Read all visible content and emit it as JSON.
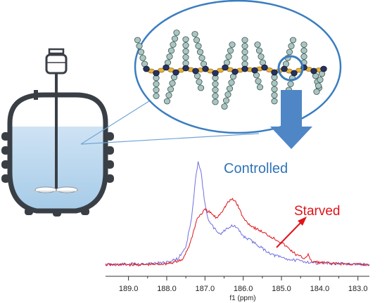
{
  "figure": {
    "colors": {
      "ellipse_stroke": "#3a7dc0",
      "arrow_fill": "#4f86c6",
      "vessel_stroke": "#3a3f46",
      "liquid_top": "#cfe3f4",
      "liquid_bottom": "#a6cbe8",
      "chain_link": "#e8b23a",
      "dark_unit": "#27325e",
      "side_bead": "#a9c6c2",
      "controlled": "#6f6fe0",
      "starved": "#e0141b",
      "controlled_label": "#2f74b8",
      "starved_label": "#e0141b"
    },
    "icons": [
      "bioreactor-vessel-icon",
      "polymer-chain-icon",
      "down-arrow-icon",
      "zoom-circle-icon"
    ]
  },
  "chart_data": {
    "type": "line",
    "xlabel": "f1 (ppm)",
    "x_ticks": [
      "189.0",
      "188.0",
      "187.0",
      "186.0",
      "185.0",
      "184.0",
      "183.0"
    ],
    "xlim": [
      189.6,
      182.7
    ],
    "x_reversed": true,
    "series": [
      {
        "name": "Controlled",
        "color": "#6f6fe0",
        "x": [
          189.6,
          188.5,
          188.0,
          187.7,
          187.5,
          187.35,
          187.25,
          187.18,
          187.1,
          187.0,
          186.9,
          186.75,
          186.6,
          186.5,
          186.4,
          186.3,
          186.2,
          186.1,
          186.0,
          185.8,
          185.6,
          185.4,
          185.2,
          185.0,
          184.8,
          184.6,
          184.4,
          184.2,
          184.0,
          183.6,
          183.2,
          182.7
        ],
        "y": [
          0.01,
          0.02,
          0.03,
          0.07,
          0.18,
          0.45,
          0.8,
          1.0,
          0.88,
          0.58,
          0.42,
          0.35,
          0.3,
          0.33,
          0.36,
          0.38,
          0.37,
          0.33,
          0.28,
          0.24,
          0.19,
          0.14,
          0.1,
          0.08,
          0.06,
          0.05,
          0.04,
          0.03,
          0.025,
          0.02,
          0.015,
          0.01
        ]
      },
      {
        "name": "Starved",
        "color": "#e0141b",
        "x": [
          189.6,
          188.5,
          188.0,
          187.6,
          187.4,
          187.2,
          187.0,
          186.85,
          186.7,
          186.55,
          186.4,
          186.3,
          186.2,
          186.1,
          186.0,
          185.8,
          185.6,
          185.4,
          185.2,
          185.0,
          184.8,
          184.6,
          184.4,
          184.3,
          184.25,
          184.2,
          184.0,
          183.6,
          183.2,
          182.7
        ],
        "y": [
          0.01,
          0.01,
          0.02,
          0.05,
          0.2,
          0.45,
          0.53,
          0.5,
          0.45,
          0.52,
          0.6,
          0.63,
          0.61,
          0.54,
          0.45,
          0.38,
          0.34,
          0.3,
          0.26,
          0.22,
          0.16,
          0.1,
          0.07,
          0.11,
          0.05,
          0.04,
          0.03,
          0.02,
          0.015,
          0.01
        ]
      }
    ],
    "labels": {
      "controlled": "Controlled",
      "starved": "Starved"
    }
  }
}
